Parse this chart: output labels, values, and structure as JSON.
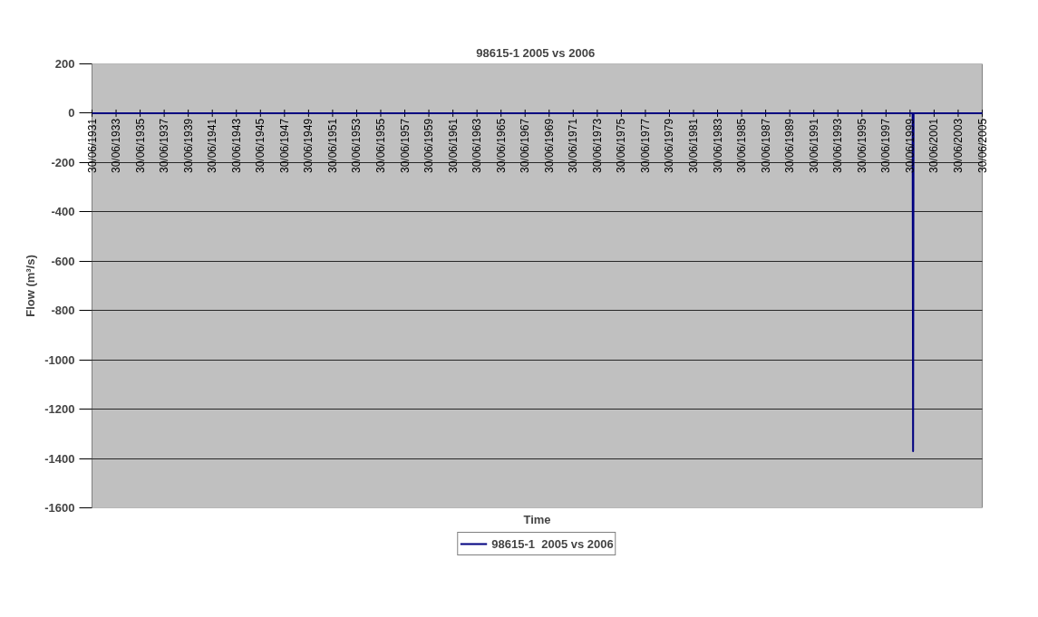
{
  "chart_data": {
    "type": "line",
    "title": "98615-1  2005 vs 2006",
    "xlabel": "Time",
    "ylabel": "Flow (m³/s)",
    "x": [
      "1931-06-30",
      "1999-09-15",
      "1999-09-30",
      "1999-10-15",
      "2005-06-30"
    ],
    "series": [
      {
        "name": "98615-1  2005 vs 2006",
        "color": "#000080",
        "values": [
          0,
          0,
          -1370,
          0,
          0
        ]
      }
    ],
    "xlim": [
      "1931-06-30",
      "2005-06-30"
    ],
    "xticks": [
      {
        "value": "1931-06-30",
        "label": "30/06/1931"
      },
      {
        "value": "1933-06-30",
        "label": "30/06/1933"
      },
      {
        "value": "1935-06-30",
        "label": "30/06/1935"
      },
      {
        "value": "1937-06-30",
        "label": "30/06/1937"
      },
      {
        "value": "1939-06-30",
        "label": "30/06/1939"
      },
      {
        "value": "1941-06-30",
        "label": "30/06/1941"
      },
      {
        "value": "1943-06-30",
        "label": "30/06/1943"
      },
      {
        "value": "1945-06-30",
        "label": "30/06/1945"
      },
      {
        "value": "1947-06-30",
        "label": "30/06/1947"
      },
      {
        "value": "1949-06-30",
        "label": "30/06/1949"
      },
      {
        "value": "1951-06-30",
        "label": "30/06/1951"
      },
      {
        "value": "1953-06-30",
        "label": "30/06/1953"
      },
      {
        "value": "1955-06-30",
        "label": "30/06/1955"
      },
      {
        "value": "1957-06-30",
        "label": "30/06/1957"
      },
      {
        "value": "1959-06-30",
        "label": "30/06/1959"
      },
      {
        "value": "1961-06-30",
        "label": "30/06/1961"
      },
      {
        "value": "1963-06-30",
        "label": "30/06/1963"
      },
      {
        "value": "1965-06-30",
        "label": "30/06/1965"
      },
      {
        "value": "1967-06-30",
        "label": "30/06/1967"
      },
      {
        "value": "1969-06-30",
        "label": "30/06/1969"
      },
      {
        "value": "1971-06-30",
        "label": "30/06/1971"
      },
      {
        "value": "1973-06-30",
        "label": "30/06/1973"
      },
      {
        "value": "1975-06-30",
        "label": "30/06/1975"
      },
      {
        "value": "1977-06-30",
        "label": "30/06/1977"
      },
      {
        "value": "1979-06-30",
        "label": "30/06/1979"
      },
      {
        "value": "1981-06-30",
        "label": "30/06/1981"
      },
      {
        "value": "1983-06-30",
        "label": "30/06/1983"
      },
      {
        "value": "1985-06-30",
        "label": "30/06/1985"
      },
      {
        "value": "1987-06-30",
        "label": "30/06/1987"
      },
      {
        "value": "1989-06-30",
        "label": "30/06/1989"
      },
      {
        "value": "1991-06-30",
        "label": "30/06/1991"
      },
      {
        "value": "1993-06-30",
        "label": "30/06/1993"
      },
      {
        "value": "1995-06-30",
        "label": "30/06/1995"
      },
      {
        "value": "1997-06-30",
        "label": "30/06/1997"
      },
      {
        "value": "1999-06-30",
        "label": "30/06/1999"
      },
      {
        "value": "2001-06-30",
        "label": "30/06/2001"
      },
      {
        "value": "2003-06-30",
        "label": "30/06/2003"
      },
      {
        "value": "2005-06-30",
        "label": "30/06/2005"
      }
    ],
    "ylim": [
      -1600,
      200
    ],
    "yticks": [
      -1600,
      -1400,
      -1200,
      -1000,
      -800,
      -600,
      -400,
      -200,
      0,
      200
    ],
    "grid": "y",
    "legend": "bottom",
    "marker": "none",
    "line_style": "solid"
  }
}
